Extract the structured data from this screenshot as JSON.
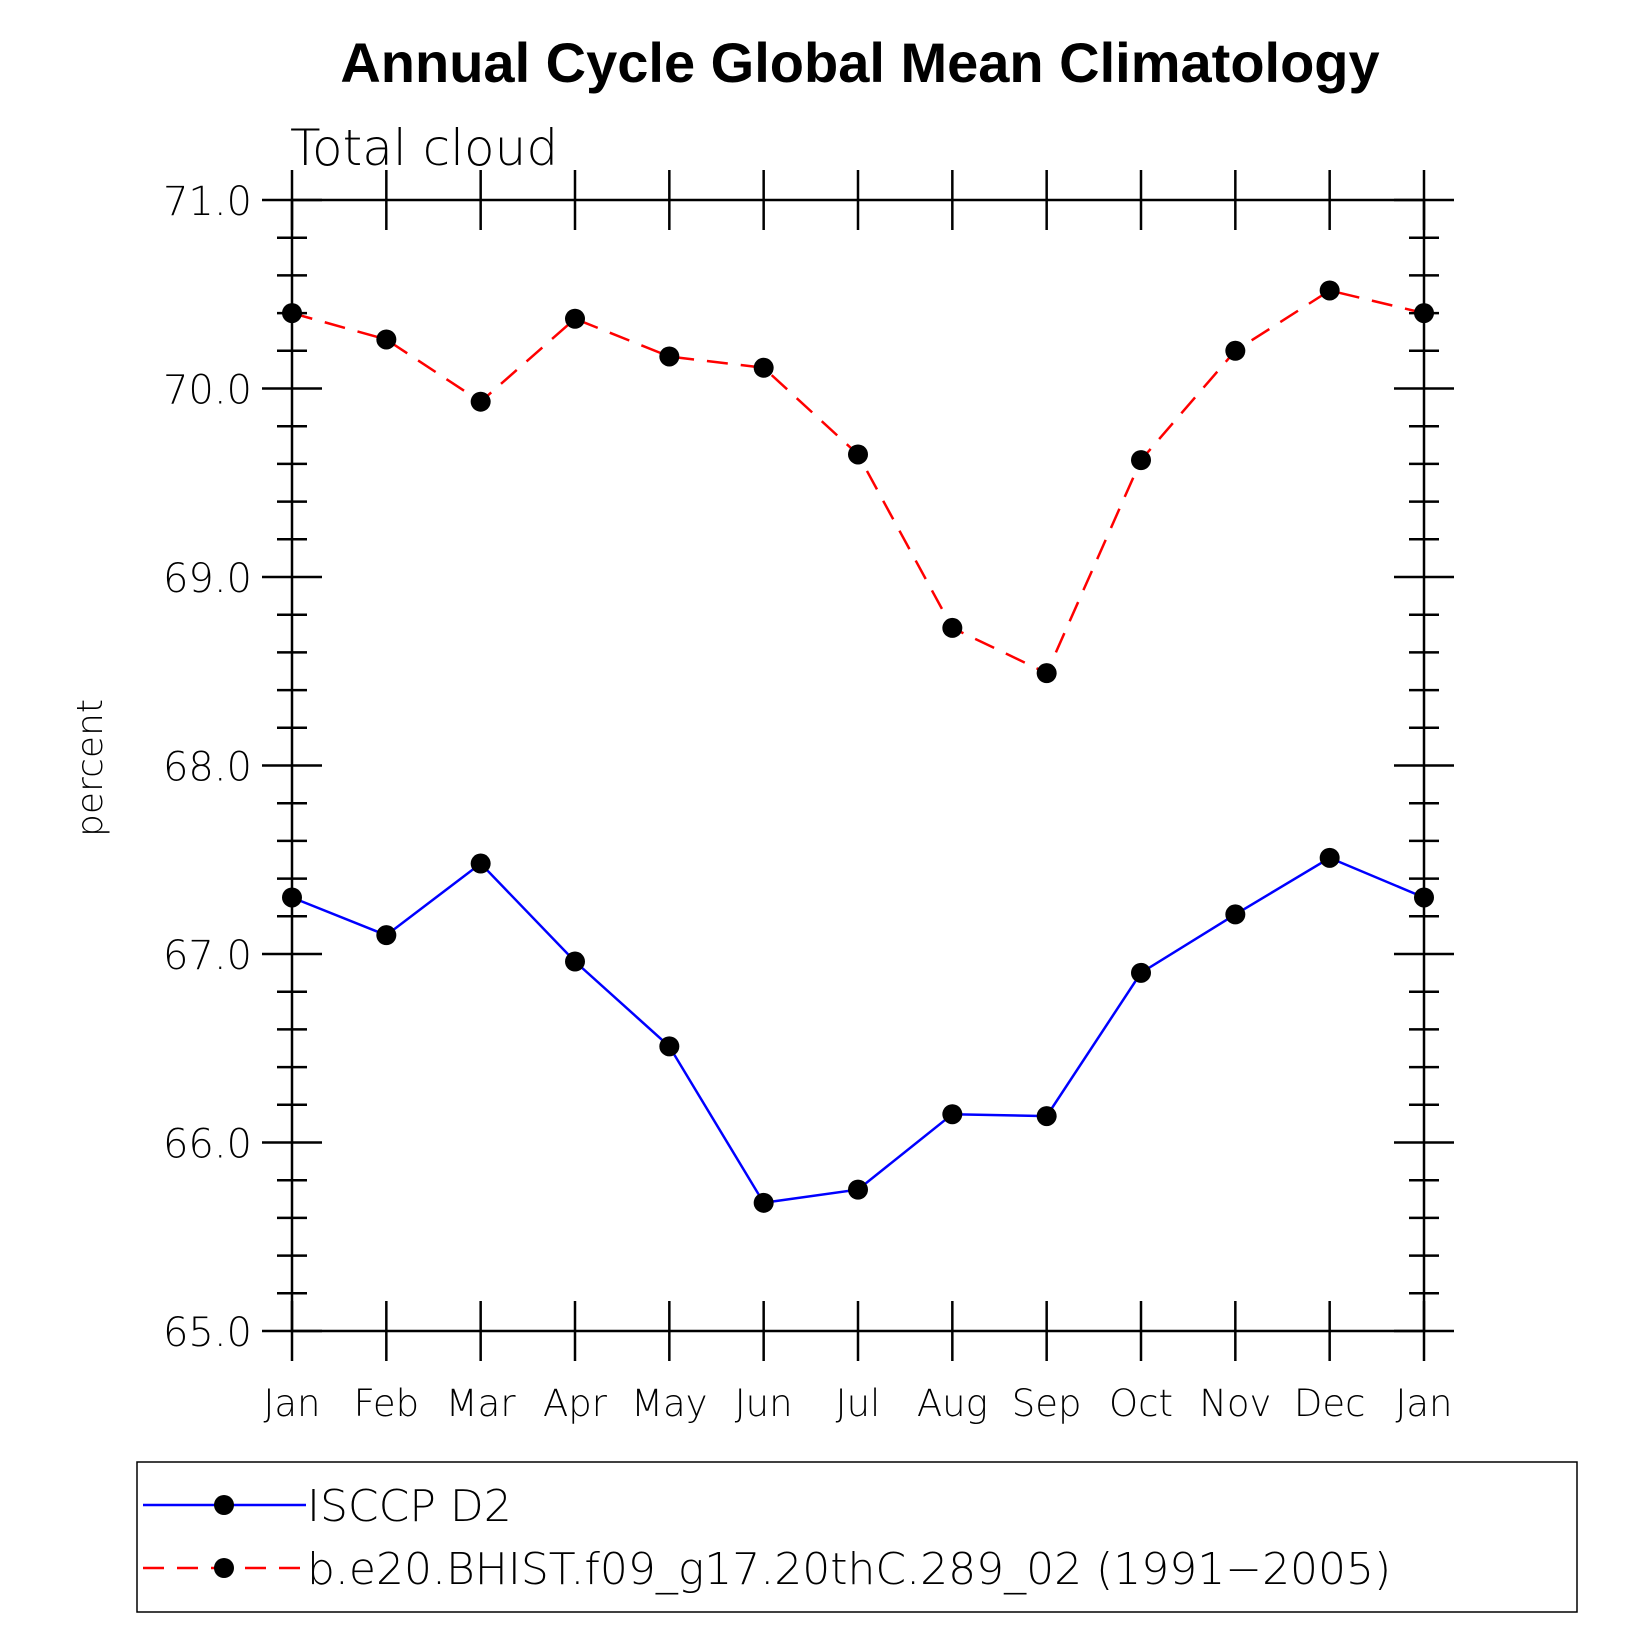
{
  "chart_data": {
    "type": "line",
    "title": "Annual Cycle Global Mean Climatology",
    "subtitle": "Total cloud",
    "ylabel": "percent",
    "xlabel": "",
    "categories": [
      "Jan",
      "Feb",
      "Mar",
      "Apr",
      "May",
      "Jun",
      "Jul",
      "Aug",
      "Sep",
      "Oct",
      "Nov",
      "Dec",
      "Jan"
    ],
    "ylim": [
      65.0,
      71.0
    ],
    "yticks": [
      "65.0",
      "66.0",
      "67.0",
      "68.0",
      "69.0",
      "70.0",
      "71.0"
    ],
    "grid": false,
    "legend_position": "bottom",
    "series": [
      {
        "name": "ISCCP D2",
        "color": "#0000ff",
        "dash": "solid",
        "marker": "filled-circle",
        "values": [
          67.3,
          67.1,
          67.48,
          66.96,
          66.51,
          65.68,
          65.75,
          66.15,
          66.14,
          66.9,
          67.21,
          67.51,
          67.3
        ]
      },
      {
        "name": "b.e20.BHIST.f09_g17.20thC.289_02 (1991−2005)",
        "color": "#ff0000",
        "dash": "dashed",
        "marker": "filled-circle",
        "values": [
          70.4,
          70.26,
          69.93,
          70.37,
          70.17,
          70.11,
          69.65,
          68.73,
          68.49,
          69.62,
          70.2,
          70.52,
          70.4
        ]
      }
    ]
  }
}
